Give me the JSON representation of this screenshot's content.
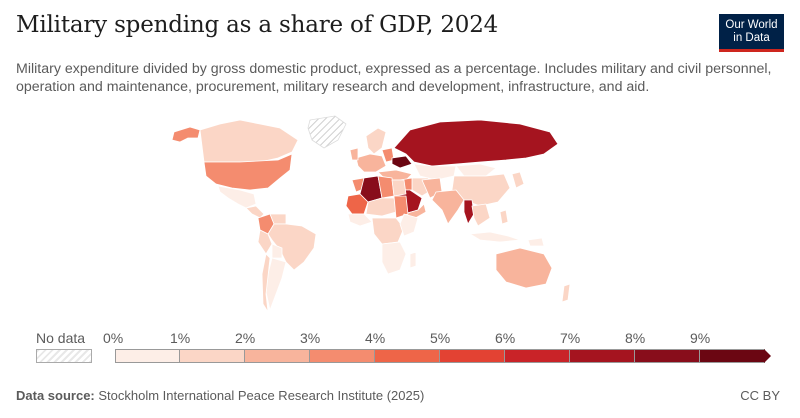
{
  "header": {
    "title": "Military spending as a share of GDP, 2024",
    "subtitle": "Military expenditure divided by gross domestic product, expressed as a percentage. Includes military and civil personnel, operation and maintenance, procurement, military research and development, infrastructure, and aid.",
    "logo_line1": "Our World",
    "logo_line2": "in Data"
  },
  "legend": {
    "no_data_label": "No data",
    "ticks": [
      "0%",
      "1%",
      "2%",
      "3%",
      "4%",
      "5%",
      "6%",
      "7%",
      "8%",
      "9%"
    ],
    "colors": [
      "#fdeee7",
      "#fbd6c6",
      "#f8b49c",
      "#f48c6f",
      "#ee6548",
      "#e34233",
      "#c92328",
      "#a5141f",
      "#880d1b",
      "#6b0612"
    ]
  },
  "map_data": {
    "type": "choropleth",
    "metric": "Military expenditure (% of GDP)",
    "year": 2024,
    "regions": [
      {
        "name": "Canada",
        "bin": "1-2%"
      },
      {
        "name": "United States",
        "bin": "3-4%"
      },
      {
        "name": "Alaska",
        "bin": "3-4%"
      },
      {
        "name": "Greenland",
        "bin": "No data"
      },
      {
        "name": "Mexico",
        "bin": "0-1%"
      },
      {
        "name": "Colombia",
        "bin": "3-4%"
      },
      {
        "name": "Brazil",
        "bin": "1-2%"
      },
      {
        "name": "Russia",
        "bin": "7-8%"
      },
      {
        "name": "Ukraine",
        "bin": "9%+"
      },
      {
        "name": "Algeria",
        "bin": "8-9%"
      },
      {
        "name": "Saudi Arabia",
        "bin": "7-8%"
      },
      {
        "name": "Myanmar",
        "bin": "7-8%"
      },
      {
        "name": "India",
        "bin": "2-3%"
      },
      {
        "name": "China",
        "bin": "1-2%"
      },
      {
        "name": "Australia",
        "bin": "2-3%"
      }
    ]
  },
  "footer": {
    "source_label": "Data source:",
    "source_text": "Stockholm International Peace Research Institute (2025)",
    "license": "CC BY"
  }
}
